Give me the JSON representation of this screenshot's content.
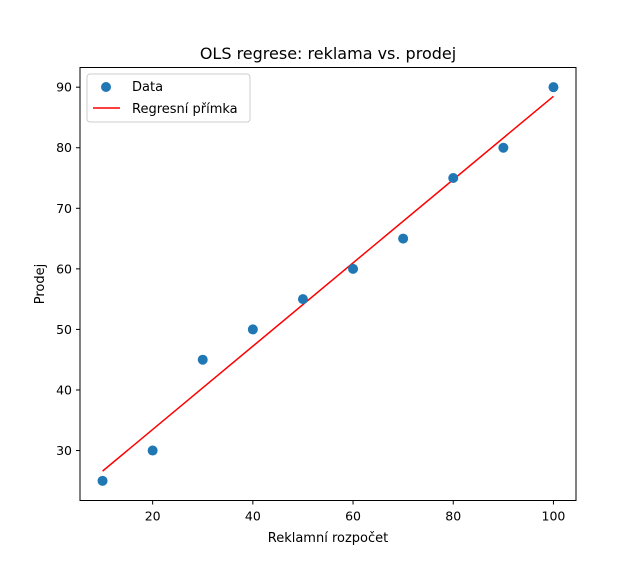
{
  "chart_data": {
    "type": "scatter",
    "title": "OLS regrese: reklama vs. prodej",
    "xlabel": "Reklamní rozpočet",
    "ylabel": "Prodej",
    "xlim": [
      5.5,
      104.5
    ],
    "ylim": [
      21.75,
      93.25
    ],
    "x_ticks": [
      20,
      40,
      60,
      80,
      100
    ],
    "y_ticks": [
      30,
      40,
      50,
      60,
      70,
      80,
      90
    ],
    "grid": false,
    "legend_position": "top-left",
    "series": [
      {
        "name": "Data",
        "kind": "scatter",
        "color": "#1f77b4",
        "points": [
          {
            "x": 10,
            "y": 25
          },
          {
            "x": 20,
            "y": 30
          },
          {
            "x": 30,
            "y": 45
          },
          {
            "x": 40,
            "y": 50
          },
          {
            "x": 50,
            "y": 55
          },
          {
            "x": 60,
            "y": 60
          },
          {
            "x": 70,
            "y": 65
          },
          {
            "x": 80,
            "y": 75
          },
          {
            "x": 90,
            "y": 80
          },
          {
            "x": 100,
            "y": 90
          }
        ]
      },
      {
        "name": "Regresní přímka",
        "kind": "line",
        "color": "#ff0000",
        "points": [
          {
            "x": 10,
            "y": 26.6
          },
          {
            "x": 100,
            "y": 88.5
          }
        ]
      }
    ]
  }
}
